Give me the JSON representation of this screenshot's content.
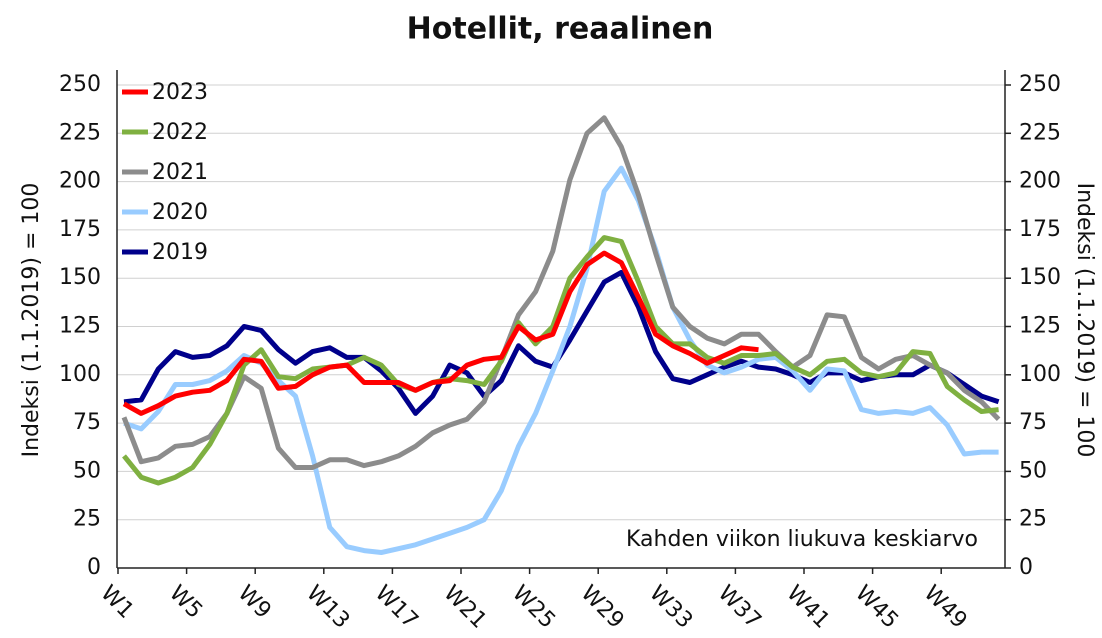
{
  "chart_data": {
    "type": "line",
    "title": "Hotellit, reaalinen",
    "y_label": "Indeksi (1.1.2019) = 100",
    "y2_label": "Indeksi (1.1.2019) = 100",
    "annotation": "Kahden viikon liukuva keskiarvo",
    "categories": [
      "W1",
      null,
      null,
      null,
      "W5",
      null,
      null,
      null,
      "W9",
      null,
      null,
      null,
      "W13",
      null,
      null,
      null,
      "W17",
      null,
      null,
      null,
      "W21",
      null,
      null,
      null,
      "W25",
      null,
      null,
      null,
      "W29",
      null,
      null,
      null,
      "W33",
      null,
      null,
      null,
      "W37",
      null,
      null,
      null,
      "W41",
      null,
      null,
      null,
      "W45",
      null,
      null,
      null,
      "W49",
      null,
      null,
      null
    ],
    "ylim": [
      0,
      250
    ],
    "yticks": [
      0,
      25,
      50,
      75,
      100,
      125,
      150,
      175,
      200,
      225,
      250
    ],
    "y2lim": [
      0,
      250
    ],
    "y2ticks": [
      0,
      25,
      50,
      75,
      100,
      125,
      150,
      175,
      200,
      225,
      250
    ],
    "grid": true,
    "legend": "upper left",
    "series": [
      {
        "name": "2023",
        "color": "#ff0000",
        "values": [
          85,
          80,
          84,
          89,
          91,
          92,
          97,
          108,
          107,
          93,
          94,
          100,
          104,
          105,
          96,
          96,
          96,
          92,
          96,
          97,
          105,
          108,
          109,
          125,
          118,
          121,
          143,
          157,
          163,
          158,
          140,
          121,
          115,
          111,
          106,
          110,
          114,
          113,
          null,
          null,
          null,
          null,
          null,
          null,
          null,
          null,
          null,
          null,
          null,
          null,
          null,
          null
        ]
      },
      {
        "name": "2022",
        "color": "#7fb041",
        "values": [
          58,
          47,
          44,
          47,
          52,
          64,
          80,
          105,
          113,
          99,
          98,
          103,
          104,
          105,
          109,
          105,
          95,
          92,
          96,
          98,
          97,
          95,
          107,
          127,
          116,
          125,
          150,
          161,
          171,
          169,
          148,
          125,
          116,
          116,
          109,
          106,
          110,
          110,
          111,
          104,
          100,
          107,
          108,
          101,
          99,
          101,
          112,
          111,
          94,
          87,
          81,
          82
        ]
      },
      {
        "name": "2021",
        "color": "#8c8c8c",
        "values": [
          78,
          55,
          57,
          63,
          64,
          68,
          80,
          99,
          93,
          62,
          52,
          52,
          56,
          56,
          53,
          55,
          58,
          63,
          70,
          74,
          77,
          86,
          108,
          131,
          143,
          164,
          201,
          225,
          233,
          218,
          193,
          163,
          135,
          125,
          119,
          116,
          121,
          121,
          112,
          104,
          110,
          131,
          130,
          109,
          103,
          108,
          110,
          105,
          101,
          92,
          86,
          77
        ]
      },
      {
        "name": "2020",
        "color": "#99ccff",
        "values": [
          75,
          72,
          81,
          95,
          95,
          97,
          102,
          110,
          106,
          97,
          89,
          58,
          21,
          11,
          9,
          8,
          10,
          12,
          15,
          18,
          21,
          25,
          40,
          63,
          80,
          102,
          125,
          155,
          195,
          207,
          190,
          165,
          135,
          118,
          105,
          101,
          104,
          108,
          109,
          102,
          92,
          103,
          102,
          82,
          80,
          81,
          80,
          83,
          74,
          59,
          60,
          60
        ]
      },
      {
        "name": "2019",
        "color": "#00008b",
        "values": [
          86,
          87,
          103,
          112,
          109,
          110,
          115,
          125,
          123,
          113,
          106,
          112,
          114,
          109,
          109,
          102,
          93,
          80,
          89,
          105,
          101,
          89,
          97,
          115,
          107,
          104,
          118,
          133,
          148,
          153,
          135,
          112,
          98,
          96,
          100,
          104,
          107,
          104,
          103,
          100,
          96,
          101,
          101,
          97,
          99,
          100,
          100,
          105,
          101,
          95,
          89,
          86
        ]
      }
    ]
  }
}
